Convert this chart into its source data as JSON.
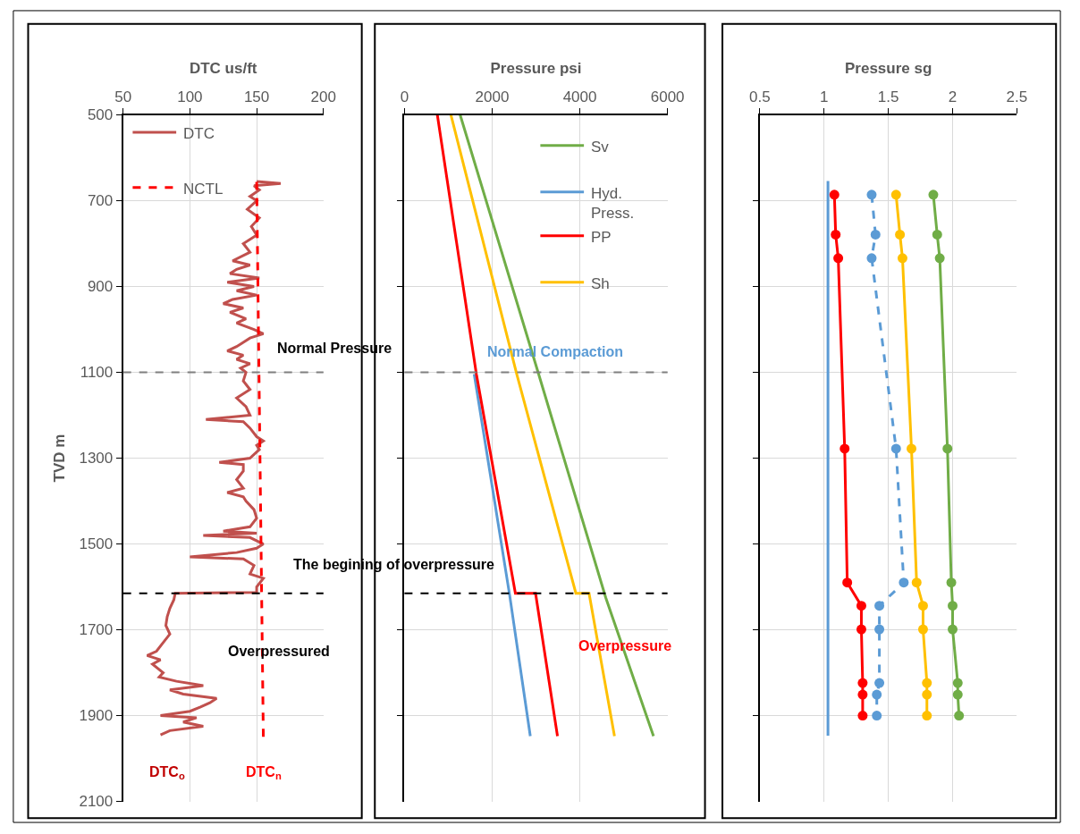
{
  "chart_data": [
    {
      "type": "line",
      "orientation": "horizontal",
      "xlabel": "DTC us/ft",
      "ylabel": "TVD m",
      "xlim": [
        50,
        200
      ],
      "xticks": [
        50,
        100,
        150,
        200
      ],
      "ylim": [
        2100,
        500
      ],
      "yticks": [
        500,
        700,
        900,
        1100,
        1300,
        1500,
        1700,
        1900,
        2100
      ],
      "grid": true,
      "legend": "top left",
      "series": [
        {
          "name": "DTC",
          "color": "#c0504d",
          "line_style": "solid",
          "x": [
            655,
            660,
            665,
            675,
            690,
            700,
            720,
            740,
            760,
            780,
            800,
            820,
            840,
            850,
            860,
            870,
            880,
            890,
            900,
            910,
            920,
            930,
            940,
            950,
            960,
            975,
            985,
            1000,
            1010,
            1020,
            1030,
            1040,
            1050,
            1060,
            1070,
            1080,
            1090,
            1100,
            1120,
            1140,
            1160,
            1180,
            1200,
            1210,
            1215,
            1230,
            1250,
            1260,
            1270,
            1280,
            1300,
            1310,
            1315,
            1330,
            1350,
            1370,
            1380,
            1390,
            1400,
            1420,
            1440,
            1460,
            1470,
            1475,
            1480,
            1485,
            1500,
            1510,
            1520,
            1530,
            1535,
            1550,
            1570,
            1580,
            1600,
            1613,
            1615,
            1630,
            1650,
            1670,
            1690,
            1710,
            1730,
            1750,
            1760,
            1770,
            1780,
            1800,
            1810,
            1820,
            1830,
            1840,
            1850,
            1860,
            1870,
            1880,
            1890,
            1900,
            1905,
            1915,
            1925,
            1935,
            1945
          ],
          "values": [
            150,
            168,
            148,
            152,
            145,
            150,
            143,
            152,
            146,
            150,
            140,
            145,
            132,
            145,
            135,
            130,
            152,
            128,
            148,
            135,
            150,
            132,
            125,
            140,
            130,
            142,
            135,
            148,
            155,
            145,
            140,
            135,
            128,
            140,
            135,
            145,
            138,
            142,
            140,
            145,
            135,
            142,
            145,
            112,
            140,
            145,
            150,
            155,
            150,
            152,
            145,
            122,
            140,
            140,
            135,
            140,
            128,
            140,
            142,
            148,
            150,
            145,
            125,
            150,
            110,
            145,
            155,
            150,
            135,
            100,
            140,
            148,
            145,
            155,
            150,
            150,
            89,
            88,
            85,
            83,
            82,
            85,
            80,
            75,
            68,
            78,
            72,
            80,
            77,
            90,
            110,
            85,
            95,
            120,
            115,
            108,
            100,
            78,
            105,
            95,
            110,
            85,
            78
          ]
        },
        {
          "name": "NCTL",
          "color": "#ff0000",
          "line_style": "dashed",
          "x": [
            656,
            1951
          ],
          "values": [
            150,
            155
          ]
        }
      ],
      "ref_lines": [
        {
          "axis": "y",
          "value": 1100,
          "color": "#7f7f7f",
          "line_style": "dashed"
        },
        {
          "axis": "y",
          "value": 1615,
          "color": "#000000",
          "line_style": "dashed"
        }
      ],
      "annotations": [
        "Normal Pressure",
        "The begining of overpressure",
        "Overpressured",
        "DTC$_{o}$",
        "DTC$_{n}$"
      ]
    },
    {
      "type": "line",
      "orientation": "horizontal",
      "xlabel": "Pressure psi",
      "xlim": [
        0,
        6000
      ],
      "xticks": [
        0,
        2000,
        4000,
        6000
      ],
      "ylim": [
        2100,
        500
      ],
      "yticks": [
        {
          "value": 700,
          "label": null
        },
        {
          "value": 900,
          "label": null
        },
        {
          "value": 1100,
          "label": null
        },
        {
          "value": 1300,
          "label": null
        },
        {
          "value": 1500,
          "label": null
        },
        {
          "value": 1700,
          "label": null
        },
        {
          "value": 1900,
          "label": null
        }
      ],
      "tick_labels": "x",
      "grid": true,
      "legend": "top right",
      "series": [
        {
          "name": "Sv",
          "color": "#70ad47",
          "line_style": "solid",
          "x": [
            500,
            1104,
            1625,
            1948
          ],
          "values": [
            1270,
            3060,
            4590,
            5680
          ]
        },
        {
          "name": "Hyd. Press.",
          "color": "#5b9bd5",
          "line_style": "solid",
          "x": [
            1104,
            1620,
            1948
          ],
          "values": [
            1590,
            2400,
            2870
          ]
        },
        {
          "name": "PP",
          "color": "#ff0000",
          "line_style": "solid",
          "x": [
            500,
            1104,
            1615,
            1615,
            1948
          ],
          "values": [
            750,
            1640,
            2530,
            2990,
            3490
          ]
        },
        {
          "name": "Sh",
          "color": "#ffc000",
          "line_style": "solid",
          "x": [
            500,
            1104,
            1615,
            1615,
            1948
          ],
          "values": [
            1060,
            2560,
            3910,
            4210,
            4790
          ]
        }
      ],
      "ref_lines": [
        {
          "axis": "y",
          "value": 1100,
          "color": "#7f7f7f",
          "line_style": "dashed"
        },
        {
          "axis": "y",
          "value": 1615,
          "color": "#000000",
          "line_style": "dashed"
        }
      ],
      "annotations": [
        "Normal Compaction",
        "Overpressure"
      ]
    },
    {
      "type": "line",
      "orientation": "horizontal",
      "xlabel": "Pressure sg",
      "xlim": [
        0.5,
        2.5
      ],
      "xticks": [
        0.5,
        1,
        1.5,
        2,
        2.5
      ],
      "ylim": [
        2100,
        500
      ],
      "yticks": [
        {
          "value": 700,
          "label": null
        },
        {
          "value": 900,
          "label": null
        },
        {
          "value": 1100,
          "label": null
        },
        {
          "value": 1300,
          "label": null
        },
        {
          "value": 1500,
          "label": null
        },
        {
          "value": 1700,
          "label": null
        },
        {
          "value": 1900,
          "label": null
        }
      ],
      "tick_labels": "x",
      "grid": true,
      "series": [
        {
          "color": "#5b9bd5",
          "line_style": "solid",
          "marker": "none",
          "x": [
            654,
            1947
          ],
          "values": [
            1.03,
            1.03
          ]
        },
        {
          "color": "#ff0000",
          "line_style": "solid",
          "marker": "circle",
          "x": [
            686,
            779,
            834,
            1278,
            1590,
            1644,
            1699,
            1824,
            1851,
            1900
          ],
          "values": [
            1.08,
            1.09,
            1.11,
            1.16,
            1.18,
            1.29,
            1.29,
            1.3,
            1.3,
            1.3
          ]
        },
        {
          "color": "#5b9bd5",
          "line_style": "dashed",
          "marker": "circle",
          "x": [
            686,
            779,
            834,
            1278,
            1590,
            1644,
            1699,
            1824,
            1851,
            1900
          ],
          "values": [
            1.37,
            1.4,
            1.37,
            1.56,
            1.62,
            1.43,
            1.43,
            1.43,
            1.41,
            1.41
          ]
        },
        {
          "color": "#ffc000",
          "line_style": "solid",
          "marker": "circle",
          "x": [
            686,
            779,
            834,
            1278,
            1590,
            1644,
            1699,
            1824,
            1851,
            1900
          ],
          "values": [
            1.56,
            1.59,
            1.61,
            1.68,
            1.72,
            1.77,
            1.77,
            1.8,
            1.8,
            1.8
          ]
        },
        {
          "color": "#70ad47",
          "line_style": "solid",
          "marker": "circle",
          "x": [
            686,
            779,
            834,
            1278,
            1590,
            1644,
            1699,
            1824,
            1851,
            1900
          ],
          "values": [
            1.85,
            1.88,
            1.9,
            1.96,
            1.99,
            2.0,
            2.0,
            2.04,
            2.04,
            2.05
          ]
        }
      ]
    }
  ]
}
